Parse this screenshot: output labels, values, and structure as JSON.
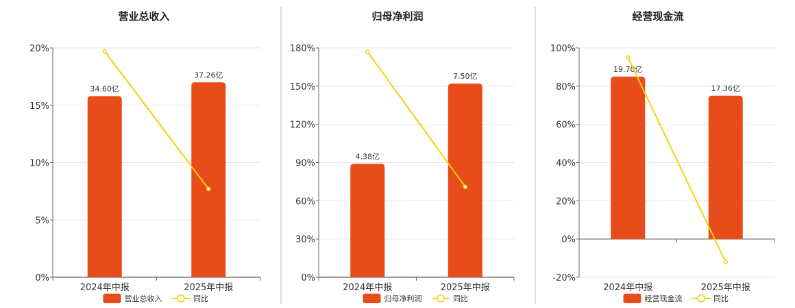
{
  "colors": {
    "bar": "#E84C1A",
    "line": "#F2D20C",
    "grid": "#E6E6E6",
    "axis": "#666666",
    "divider": "#BBBBBB"
  },
  "chart_data": [
    {
      "type": "bar",
      "title": "营业总收入",
      "categories": [
        "2024年中报",
        "2025年中报"
      ],
      "series": [
        {
          "name": "营业总收入",
          "kind": "bar",
          "values": [
            15.8,
            17.0
          ],
          "labels": [
            "34.60亿",
            "37.26亿"
          ]
        },
        {
          "name": "同比",
          "kind": "line",
          "values": [
            19.7,
            7.7
          ]
        }
      ],
      "ylim": [
        0,
        20
      ],
      "yticks": [
        "0%",
        "5%",
        "10%",
        "15%",
        "20%"
      ],
      "legend": "bottom",
      "grid": true
    },
    {
      "type": "bar",
      "title": "归母净利润",
      "categories": [
        "2024年中报",
        "2025年中报"
      ],
      "series": [
        {
          "name": "归母净利润",
          "kind": "bar",
          "values": [
            89,
            152
          ],
          "labels": [
            "4.38亿",
            "7.50亿"
          ]
        },
        {
          "name": "同比",
          "kind": "line",
          "values": [
            177,
            71
          ]
        }
      ],
      "ylim": [
        0,
        180
      ],
      "yticks": [
        "0%",
        "30%",
        "60%",
        "90%",
        "120%",
        "150%",
        "180%"
      ],
      "legend": "bottom",
      "grid": true
    },
    {
      "type": "bar",
      "title": "经营现金流",
      "categories": [
        "2024年中报",
        "2025年中报"
      ],
      "series": [
        {
          "name": "经营现金流",
          "kind": "bar",
          "values": [
            85,
            75
          ],
          "labels": [
            "19.70亿",
            "17.36亿"
          ]
        },
        {
          "name": "同比",
          "kind": "line",
          "values": [
            95,
            -12
          ]
        }
      ],
      "ylim": [
        -20,
        100
      ],
      "yticks": [
        "-20%",
        "0%",
        "20%",
        "40%",
        "60%",
        "80%",
        "100%"
      ],
      "legend": "bottom",
      "grid": true
    }
  ]
}
